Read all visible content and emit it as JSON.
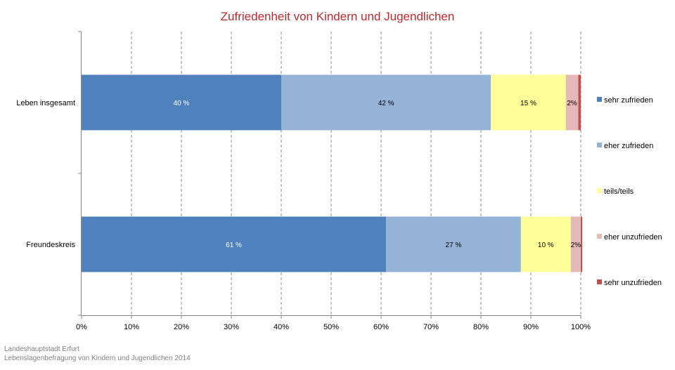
{
  "chart_data": {
    "type": "bar",
    "orientation": "horizontal",
    "stacked": "percent",
    "title": "Zufriedenheit von Kindern und Jugendlichen",
    "categories": [
      "Leben insgesamt",
      "Freundeskreis"
    ],
    "series": [
      {
        "name": "sehr zufrieden",
        "color": "#4f81bd",
        "values": [
          40,
          61
        ],
        "labels": [
          "40 %",
          "61 %"
        ],
        "label_color": "#ffffff"
      },
      {
        "name": "eher zufrieden",
        "color": "#95b3d7",
        "values": [
          42,
          27
        ],
        "labels": [
          "42 %",
          "27 %"
        ],
        "label_color": "#000000"
      },
      {
        "name": "teils/teils",
        "color": "#ffff99",
        "values": [
          15,
          10
        ],
        "labels": [
          "15 %",
          "10 %"
        ],
        "label_color": "#000000"
      },
      {
        "name": "eher unzufrieden",
        "color": "#e6b9b8",
        "values": [
          2.5,
          2
        ],
        "labels": [
          "2%",
          "2%"
        ],
        "label_color": "#000000"
      },
      {
        "name": "sehr unzufrieden",
        "color": "#c0504d",
        "values": [
          0.5,
          0.3
        ],
        "labels": [
          "",
          ""
        ],
        "label_color": "#000000"
      }
    ],
    "xlim": [
      0,
      100
    ],
    "xticks": [
      "0%",
      "10%",
      "20%",
      "30%",
      "40%",
      "50%",
      "60%",
      "70%",
      "80%",
      "90%",
      "100%"
    ],
    "grid": "vertical dashed",
    "legend_position": "right"
  },
  "source": {
    "line1": "Landeshauptstadt Erfurt",
    "line2": "Lebenslagenbefragung von Kindern und Jugendlichen 2014"
  }
}
